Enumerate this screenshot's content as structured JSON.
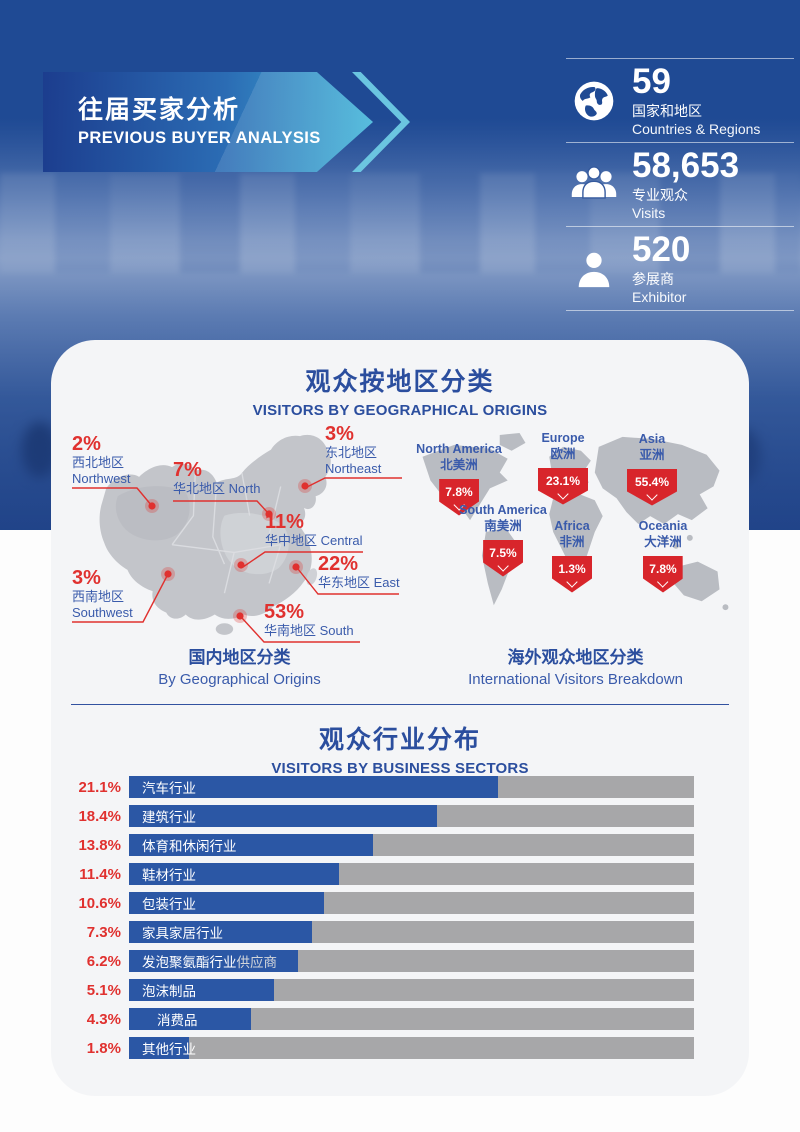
{
  "header": {
    "banner": {
      "title_zh": "往届买家分析",
      "title_en": "PREVIOUS BUYER ANALYSIS"
    },
    "stats": [
      {
        "icon": "globe-icon",
        "value": "59",
        "label_zh": "国家和地区",
        "label_en": "Countries & Regions"
      },
      {
        "icon": "visitors-icon",
        "value": "58,653",
        "label_zh": "专业观众",
        "label_en": "Visits"
      },
      {
        "icon": "exhibitor-icon",
        "value": "520",
        "label_zh": "参展商",
        "label_en": "Exhibitor"
      }
    ]
  },
  "geo": {
    "title_zh": "观众按地区分类",
    "title_en": "VISITORS BY GEOGRAPHICAL ORIGINS",
    "china": {
      "caption_zh": "国内地区分类",
      "caption_en": "By Geographical Origins",
      "regions": [
        {
          "pct": "2%",
          "zh": "西北地区",
          "en": "Northwest"
        },
        {
          "pct": "7%",
          "zh": "华北地区",
          "en": "North"
        },
        {
          "pct": "3%",
          "zh": "东北地区",
          "en": "Northeast"
        },
        {
          "pct": "11%",
          "zh": "华中地区",
          "en": "Central"
        },
        {
          "pct": "22%",
          "zh": "华东地区",
          "en": "East"
        },
        {
          "pct": "3%",
          "zh": "西南地区",
          "en": "Southwest"
        },
        {
          "pct": "53%",
          "zh": "华南地区",
          "en": "South"
        }
      ]
    },
    "world": {
      "caption_zh": "海外观众地区分类",
      "caption_en": "International Visitors Breakdown",
      "continents": [
        {
          "en": "North America",
          "zh": "北美洲",
          "pct": "7.8%"
        },
        {
          "en": "Europe",
          "zh": "欧洲",
          "pct": "23.1%"
        },
        {
          "en": "Asia",
          "zh": "亚洲",
          "pct": "55.4%"
        },
        {
          "en": "South America",
          "zh": "南美洲",
          "pct": "7.5%"
        },
        {
          "en": "Africa",
          "zh": "非洲",
          "pct": "1.3%"
        },
        {
          "en": "Oceania",
          "zh": "大洋洲",
          "pct": "7.8%"
        }
      ]
    }
  },
  "sectors": {
    "title_zh": "观众行业分布",
    "title_en": "VISITORS BY BUSINESS SECTORS",
    "items": [
      {
        "pct": "21.1%",
        "label": "汽车行业",
        "frac": 0.653
      },
      {
        "pct": "18.4%",
        "label": "建筑行业",
        "frac": 0.545
      },
      {
        "pct": "13.8%",
        "label": "体育和休闲行业",
        "frac": 0.432
      },
      {
        "pct": "11.4%",
        "label": "鞋材行业",
        "frac": 0.372
      },
      {
        "pct": "10.6%",
        "label": "包装行业",
        "frac": 0.346
      },
      {
        "pct": "7.3%",
        "label": "家具家居行业",
        "frac": 0.324
      },
      {
        "pct": "6.2%",
        "label": "发泡聚氨酯行业",
        "suffix": "供应商",
        "frac": 0.299
      },
      {
        "pct": "5.1%",
        "label": "泡沫制品",
        "frac": 0.256
      },
      {
        "pct": "4.3%",
        "label": "消费品",
        "frac": 0.216
      },
      {
        "pct": "1.8%",
        "label": "其他行业",
        "frac": 0.106
      }
    ]
  },
  "chart_data": [
    {
      "type": "bar",
      "title": "观众按地区分类 国内地区分类 By Geographical Origins",
      "categories": [
        "西北地区 Northwest",
        "华北地区 North",
        "东北地区 Northeast",
        "华中地区 Central",
        "华东地区 East",
        "西南地区 Southwest",
        "华南地区 South"
      ],
      "values": [
        2,
        7,
        3,
        11,
        22,
        3,
        53
      ],
      "unit": "%"
    },
    {
      "type": "bar",
      "title": "海外观众地区分类 International Visitors Breakdown",
      "categories": [
        "North America 北美洲",
        "Europe 欧洲",
        "Asia 亚洲",
        "South America 南美洲",
        "Africa 非洲",
        "Oceania 大洋洲"
      ],
      "values": [
        7.8,
        23.1,
        55.4,
        7.5,
        1.3,
        7.8
      ],
      "unit": "%"
    },
    {
      "type": "bar",
      "title": "观众行业分布 VISITORS BY BUSINESS SECTORS",
      "categories": [
        "汽车行业",
        "建筑行业",
        "体育和休闲行业",
        "鞋材行业",
        "包装行业",
        "家具家居行业",
        "发泡聚氨酯行业供应商",
        "泡沫制品",
        "消费品",
        "其他行业"
      ],
      "values": [
        21.1,
        18.4,
        13.8,
        11.4,
        10.6,
        7.3,
        6.2,
        5.1,
        4.3,
        1.8
      ],
      "unit": "%",
      "legend": "none",
      "grid": false
    }
  ]
}
